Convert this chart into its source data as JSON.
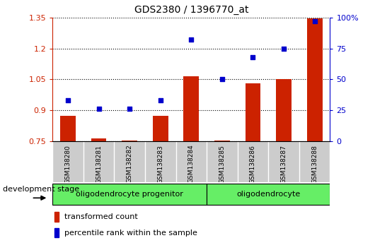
{
  "title": "GDS2380 / 1396770_at",
  "samples": [
    "GSM138280",
    "GSM138281",
    "GSM138282",
    "GSM138283",
    "GSM138284",
    "GSM138285",
    "GSM138286",
    "GSM138287",
    "GSM138288"
  ],
  "transformed_count": [
    0.875,
    0.765,
    0.755,
    0.875,
    1.065,
    0.755,
    1.03,
    1.05,
    1.345
  ],
  "percentile_rank": [
    33,
    26,
    26,
    33,
    82,
    50,
    68,
    75,
    97
  ],
  "ylim_left": [
    0.75,
    1.35
  ],
  "ylim_right": [
    0,
    100
  ],
  "yticks_left": [
    0.75,
    0.9,
    1.05,
    1.2,
    1.35
  ],
  "ytick_labels_left": [
    "0.75",
    "0.9",
    "1.05",
    "1.2",
    "1.35"
  ],
  "yticks_right": [
    0,
    25,
    50,
    75,
    100
  ],
  "ytick_labels_right": [
    "0",
    "25",
    "50",
    "75",
    "100%"
  ],
  "groups": [
    {
      "label": "oligodendrocyte progenitor",
      "start": 0,
      "end": 5,
      "color": "#66EE66"
    },
    {
      "label": "oligodendrocyte",
      "start": 5,
      "end": 9,
      "color": "#66EE66"
    }
  ],
  "bar_color": "#CC2200",
  "dot_color": "#0000CC",
  "bg_color": "#FFFFFF",
  "tick_area_color": "#CCCCCC",
  "legend_items": [
    "transformed count",
    "percentile rank within the sample"
  ],
  "development_stage_label": "development stage"
}
